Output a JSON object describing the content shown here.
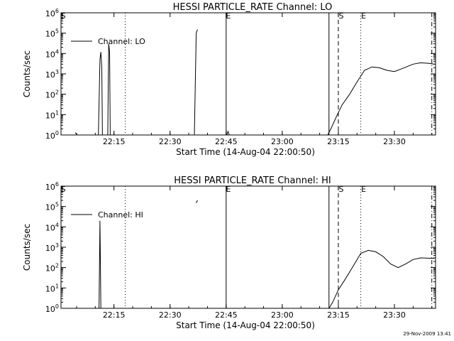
{
  "footer": {
    "timestamp": "29-Nov-2009 13:41"
  },
  "chart_data": [
    {
      "type": "line",
      "title": "HESSI PARTICLE_RATE Channel: LO",
      "xlabel": "Start Time (14-Aug-04 22:00:50)",
      "ylabel": "Counts/sec",
      "y_scale": "log",
      "ylim": [
        1,
        1000000
      ],
      "xlim": [
        "22:00:50",
        "23:41:00"
      ],
      "xtick_labels": [
        "22:15",
        "22:30",
        "22:45",
        "23:00",
        "23:15",
        "23:30"
      ],
      "ytick_labels": [
        {
          "base": "10",
          "exp": "0"
        },
        {
          "base": "10",
          "exp": "1"
        },
        {
          "base": "10",
          "exp": "2"
        },
        {
          "base": "10",
          "exp": "3"
        },
        {
          "base": "10",
          "exp": "4"
        },
        {
          "base": "10",
          "exp": "5"
        },
        {
          "base": "10",
          "exp": "6"
        }
      ],
      "series": [
        {
          "name": "Channel: LO",
          "segments": [
            [
              [
                "22:04:40",
                1.3
              ],
              [
                "22:05:10",
                1.0
              ]
            ],
            [
              [
                "22:10:50",
                1.0
              ],
              [
                "22:11:15",
                5000
              ],
              [
                "22:11:30",
                12000
              ],
              [
                "22:11:45",
                2000
              ],
              [
                "22:11:55",
                1.0
              ]
            ],
            [
              [
                "22:13:20",
                1.0
              ],
              [
                "22:13:35",
                30000
              ],
              [
                "22:13:50",
                12000
              ],
              [
                "22:14:00",
                1.0
              ]
            ],
            [
              [
                "22:36:30",
                1.0
              ],
              [
                "22:37:00",
                100000
              ],
              [
                "22:37:20",
                150000
              ]
            ],
            [
              [
                "22:45:10",
                1.0
              ],
              [
                "22:45:30",
                1.5
              ],
              [
                "22:45:50",
                1.0
              ]
            ],
            [
              [
                "23:12:10",
                1.0
              ],
              [
                "23:13:00",
                2
              ],
              [
                "23:14:30",
                8
              ],
              [
                "23:16:00",
                30
              ],
              [
                "23:18:00",
                100
              ],
              [
                "23:20:00",
                400
              ],
              [
                "23:22:00",
                1500
              ],
              [
                "23:24:00",
                2200
              ],
              [
                "23:26:00",
                2000
              ],
              [
                "23:28:00",
                1500
              ],
              [
                "23:30:00",
                1300
              ],
              [
                "23:32:00",
                1800
              ],
              [
                "23:35:00",
                3000
              ],
              [
                "23:37:00",
                3500
              ],
              [
                "23:39:00",
                3300
              ],
              [
                "23:40:40",
                3000
              ]
            ]
          ]
        }
      ],
      "markers": [
        {
          "time": "22:18:00",
          "style": "dotted"
        },
        {
          "time": "22:45:00",
          "style": "solid"
        },
        {
          "time": "23:12:30",
          "style": "solid"
        },
        {
          "time": "23:15:00",
          "style": "dashed",
          "label": "S"
        },
        {
          "time": "23:21:00",
          "style": "dotted",
          "label": "E"
        },
        {
          "time": "23:40:00",
          "style": "dash-dot"
        }
      ],
      "edge_labels": [
        {
          "time": "22:00:50",
          "label": "S"
        },
        {
          "time": "22:45:00",
          "label": "E"
        }
      ],
      "legend": "top-left"
    },
    {
      "type": "line",
      "title": "HESSI PARTICLE_RATE Channel: HI",
      "xlabel": "Start Time (14-Aug-04 22:00:50)",
      "ylabel": "Counts/sec",
      "y_scale": "log",
      "ylim": [
        1,
        1000000
      ],
      "xlim": [
        "22:00:50",
        "23:41:00"
      ],
      "xtick_labels": [
        "22:15",
        "22:30",
        "22:45",
        "23:00",
        "23:15",
        "23:30"
      ],
      "ytick_labels": [
        {
          "base": "10",
          "exp": "0"
        },
        {
          "base": "10",
          "exp": "1"
        },
        {
          "base": "10",
          "exp": "2"
        },
        {
          "base": "10",
          "exp": "3"
        },
        {
          "base": "10",
          "exp": "4"
        },
        {
          "base": "10",
          "exp": "5"
        },
        {
          "base": "10",
          "exp": "6"
        }
      ],
      "series": [
        {
          "name": "Channel: HI",
          "segments": [
            [
              [
                "22:11:00",
                1.0
              ],
              [
                "22:11:15",
                20000
              ],
              [
                "22:11:30",
                1.0
              ]
            ],
            [
              [
                "22:37:00",
                150000
              ],
              [
                "22:37:20",
                200000
              ]
            ],
            [
              [
                "23:12:30",
                1.0
              ],
              [
                "23:13:30",
                2
              ],
              [
                "23:15:00",
                8
              ],
              [
                "23:17:00",
                30
              ],
              [
                "23:19:00",
                120
              ],
              [
                "23:21:00",
                500
              ],
              [
                "23:23:00",
                700
              ],
              [
                "23:25:00",
                600
              ],
              [
                "23:27:00",
                350
              ],
              [
                "23:29:00",
                150
              ],
              [
                "23:31:00",
                100
              ],
              [
                "23:33:00",
                150
              ],
              [
                "23:35:00",
                250
              ],
              [
                "23:37:00",
                300
              ],
              [
                "23:40:40",
                280
              ]
            ]
          ]
        }
      ],
      "markers": [
        {
          "time": "22:18:00",
          "style": "dotted"
        },
        {
          "time": "22:45:00",
          "style": "solid"
        },
        {
          "time": "23:12:30",
          "style": "solid"
        },
        {
          "time": "23:15:00",
          "style": "dashed",
          "label": "S"
        },
        {
          "time": "23:21:00",
          "style": "dotted",
          "label": "E"
        },
        {
          "time": "23:40:00",
          "style": "dash-dot"
        }
      ],
      "edge_labels": [
        {
          "time": "22:00:50",
          "label": "S"
        },
        {
          "time": "22:45:00",
          "label": "E"
        }
      ],
      "legend": "top-left"
    }
  ]
}
